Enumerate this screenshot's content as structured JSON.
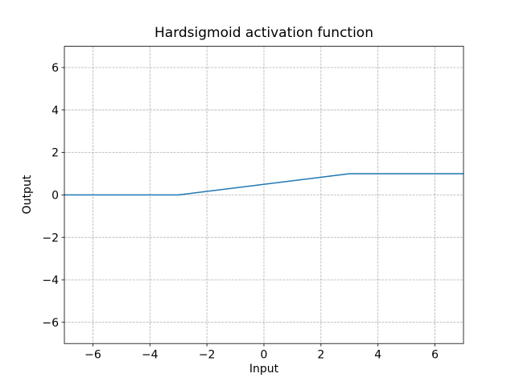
{
  "figure": {
    "background_color": "#ffffff"
  },
  "chart_data": {
    "type": "line",
    "title": "Hardsigmoid activation function",
    "xlabel": "Input",
    "ylabel": "Output",
    "xlim": [
      -7,
      7
    ],
    "ylim": [
      -7,
      7
    ],
    "xticks": [
      -6,
      -4,
      -2,
      0,
      2,
      4,
      6
    ],
    "xtick_labels": [
      "−6",
      "−4",
      "−2",
      "0",
      "2",
      "4",
      "6"
    ],
    "yticks": [
      -6,
      -4,
      -2,
      0,
      2,
      4,
      6
    ],
    "ytick_labels": [
      "−6",
      "−4",
      "−2",
      "0",
      "2",
      "4",
      "6"
    ],
    "grid": true,
    "grid_style": "dashed",
    "grid_color": "#b0b0b0",
    "axes_color": "#000000",
    "legend": "none",
    "series": [
      {
        "name": "Hardsigmoid",
        "color": "#1f77b4",
        "line_width": 1.5,
        "x": [
          -7,
          -3,
          3,
          7
        ],
        "y": [
          0,
          0,
          1,
          1
        ]
      }
    ]
  }
}
